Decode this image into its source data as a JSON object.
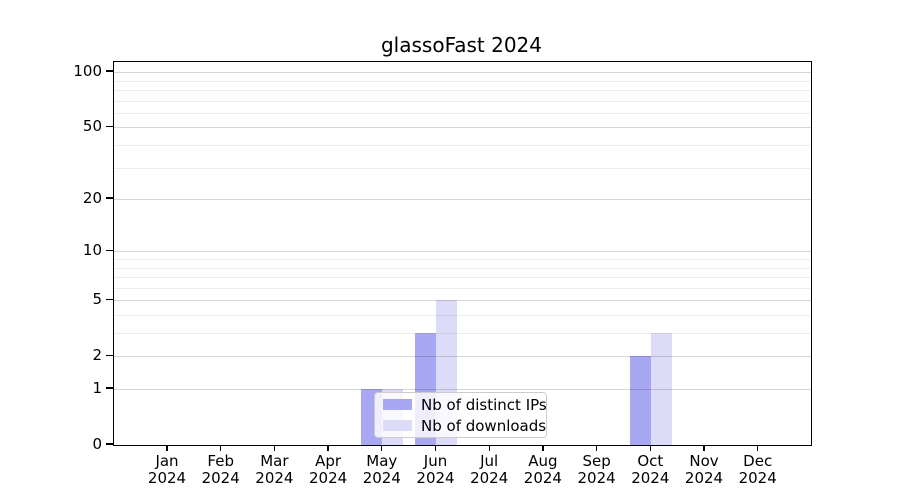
{
  "chart_data": {
    "type": "bar",
    "title": "glassoFast 2024",
    "categories": [
      "Jan 2024",
      "Feb 2024",
      "Mar 2024",
      "Apr 2024",
      "May 2024",
      "Jun 2024",
      "Jul 2024",
      "Aug 2024",
      "Sep 2024",
      "Oct 2024",
      "Nov 2024",
      "Dec 2024"
    ],
    "series": [
      {
        "name": "Nb of distinct IPs",
        "color": "#a8a8f2",
        "values": [
          0,
          0,
          0,
          0,
          1,
          3,
          0,
          0,
          0,
          2,
          0,
          0
        ]
      },
      {
        "name": "Nb of downloads",
        "color": "#dcdcf8",
        "values": [
          0,
          0,
          0,
          0,
          1,
          5,
          0,
          0,
          0,
          3,
          0,
          0
        ]
      }
    ],
    "xlabel": "",
    "ylabel": "",
    "yaxis": {
      "scale": "log10(1+y)",
      "ticks_major": [
        0,
        1,
        2,
        5,
        10,
        20,
        50,
        100
      ],
      "ticks_minor": [
        3,
        4,
        6,
        7,
        8,
        9,
        30,
        40,
        60,
        70,
        80,
        90
      ],
      "ylim": [
        0,
        113
      ]
    },
    "grid": "horizontal",
    "legend_position": "inside-bottom-center"
  }
}
